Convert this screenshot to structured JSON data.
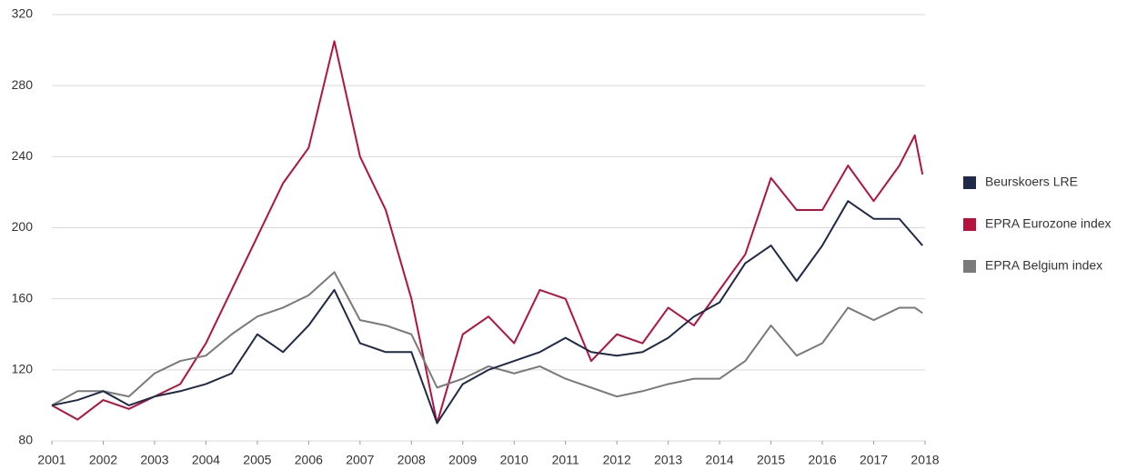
{
  "chart_data": {
    "type": "line",
    "x": [
      2001,
      2001.5,
      2002,
      2002.5,
      2003,
      2003.5,
      2004,
      2004.5,
      2005,
      2005.5,
      2006,
      2006.5,
      2007,
      2007.5,
      2008,
      2008.5,
      2009,
      2009.5,
      2010,
      2010.5,
      2011,
      2011.5,
      2012,
      2012.5,
      2013,
      2013.5,
      2014,
      2014.5,
      2015,
      2015.5,
      2016,
      2016.5,
      2017,
      2017.5,
      2017.8,
      2017.95
    ],
    "series": [
      {
        "name": "Beurskoers LRE",
        "color": "#1f2a4a",
        "values": [
          100,
          103,
          108,
          100,
          105,
          108,
          112,
          118,
          140,
          130,
          145,
          165,
          135,
          130,
          130,
          90,
          112,
          120,
          125,
          130,
          138,
          130,
          128,
          130,
          138,
          150,
          158,
          180,
          190,
          170,
          190,
          215,
          205,
          205,
          195,
          190
        ]
      },
      {
        "name": "EPRA Eurozone index",
        "color": "#b5123d",
        "values": [
          100,
          92,
          103,
          98,
          105,
          112,
          135,
          165,
          195,
          225,
          245,
          305,
          240,
          210,
          160,
          90,
          140,
          150,
          135,
          165,
          160,
          125,
          140,
          135,
          155,
          145,
          165,
          185,
          228,
          210,
          210,
          235,
          215,
          235,
          252,
          230
        ]
      },
      {
        "name": "EPRA Belgium index",
        "color": "#7a7a7a",
        "values": [
          100,
          108,
          108,
          105,
          118,
          125,
          128,
          140,
          150,
          155,
          162,
          175,
          148,
          145,
          140,
          110,
          115,
          122,
          118,
          122,
          115,
          110,
          105,
          108,
          112,
          115,
          115,
          125,
          145,
          128,
          135,
          155,
          148,
          155,
          155,
          152
        ]
      }
    ],
    "xlim": [
      2001,
      2018
    ],
    "xticks": [
      2001,
      2002,
      2003,
      2004,
      2005,
      2006,
      2007,
      2008,
      2009,
      2010,
      2011,
      2012,
      2013,
      2014,
      2015,
      2016,
      2017,
      2018
    ],
    "ylim": [
      80,
      320
    ],
    "yticks": [
      80,
      120,
      160,
      200,
      240,
      280,
      320
    ],
    "grid": true,
    "legend": "right"
  }
}
